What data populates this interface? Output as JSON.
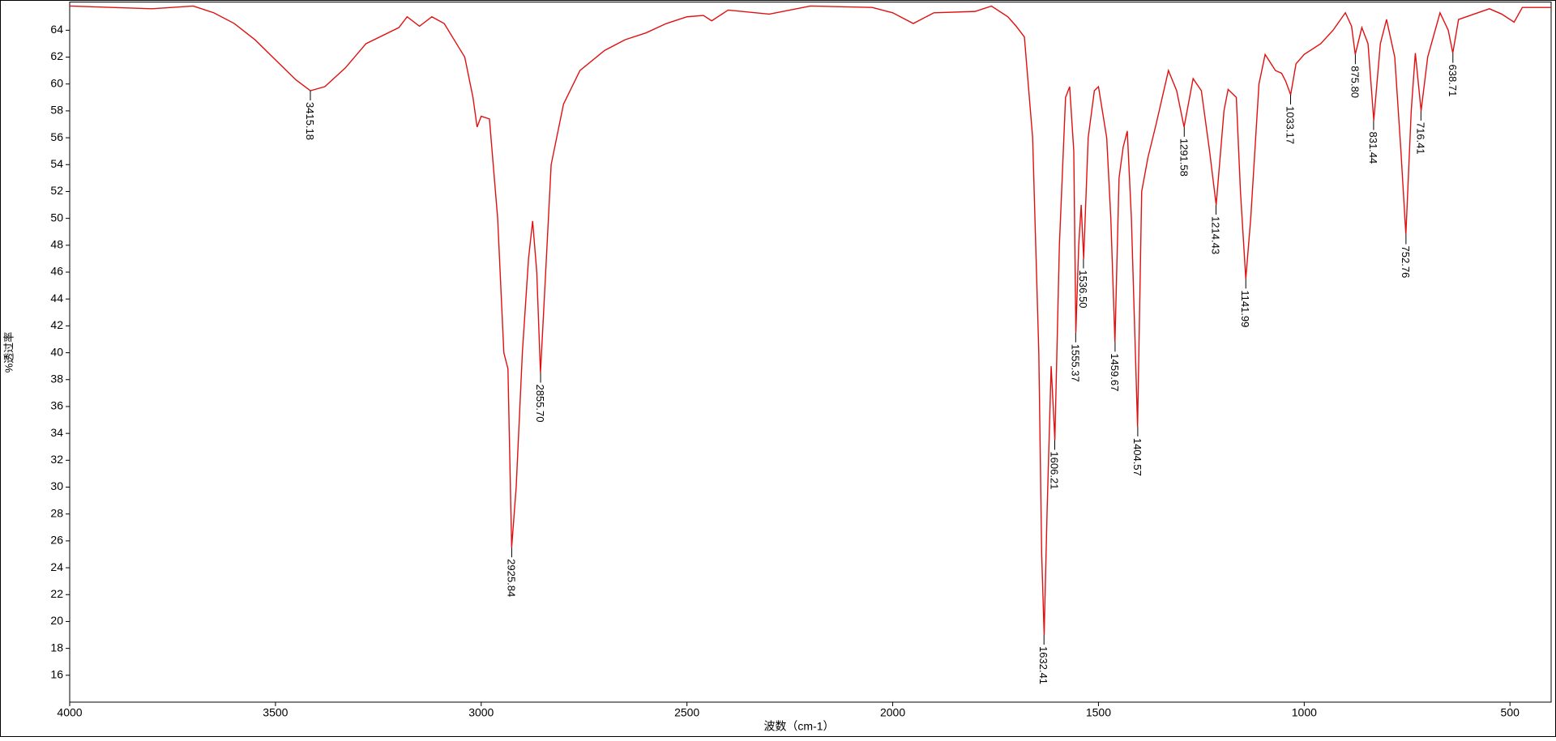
{
  "chart_data": {
    "type": "line",
    "xlabel": "波数（cm-1）",
    "ylabel": "%透过率",
    "color": "#e01010",
    "xlim": [
      4000,
      400
    ],
    "ylim": [
      14,
      66.1
    ],
    "xticks": [
      4000,
      3500,
      3000,
      2500,
      2000,
      1500,
      1000,
      500
    ],
    "yticks": [
      16,
      18,
      20,
      22,
      24,
      26,
      28,
      30,
      32,
      34,
      36,
      38,
      40,
      42,
      44,
      46,
      48,
      50,
      52,
      54,
      56,
      58,
      60,
      62,
      64
    ],
    "x": [
      4000,
      3800,
      3700,
      3650,
      3600,
      3550,
      3500,
      3450,
      3415,
      3380,
      3330,
      3280,
      3200,
      3180,
      3150,
      3120,
      3090,
      3060,
      3040,
      3020,
      3010,
      3000,
      2980,
      2960,
      2945,
      2935,
      2926,
      2915,
      2900,
      2885,
      2875,
      2865,
      2856,
      2845,
      2830,
      2800,
      2760,
      2700,
      2650,
      2600,
      2550,
      2500,
      2460,
      2440,
      2400,
      2300,
      2200,
      2050,
      2000,
      1950,
      1900,
      1800,
      1760,
      1720,
      1700,
      1680,
      1660,
      1645,
      1638,
      1632,
      1625,
      1615,
      1610,
      1606,
      1595,
      1580,
      1570,
      1560,
      1555,
      1548,
      1542,
      1536,
      1525,
      1510,
      1500,
      1480,
      1470,
      1460,
      1450,
      1440,
      1430,
      1420,
      1405,
      1395,
      1380,
      1360,
      1330,
      1310,
      1292,
      1270,
      1250,
      1230,
      1214,
      1195,
      1185,
      1165,
      1155,
      1142,
      1130,
      1110,
      1095,
      1070,
      1055,
      1045,
      1033,
      1020,
      1000,
      960,
      930,
      900,
      885,
      876,
      860,
      845,
      831,
      815,
      800,
      780,
      765,
      753,
      740,
      730,
      716,
      700,
      670,
      650,
      639,
      625,
      550,
      520,
      490,
      470,
      400
    ],
    "values": [
      65.8,
      65.6,
      65.8,
      65.3,
      64.5,
      63.3,
      61.8,
      60.3,
      59.5,
      59.8,
      61.2,
      63.0,
      64.2,
      65.0,
      64.3,
      65.0,
      64.5,
      63.0,
      62.0,
      59.0,
      56.8,
      57.6,
      57.4,
      50,
      40,
      38.8,
      25.5,
      30,
      40,
      47,
      49.8,
      46,
      38.5,
      45,
      54,
      58.5,
      61.0,
      62.5,
      63.3,
      63.8,
      64.5,
      65.0,
      65.1,
      64.7,
      65.5,
      65.2,
      65.8,
      65.7,
      65.3,
      64.5,
      65.3,
      65.4,
      65.8,
      65.0,
      64.3,
      63.5,
      56,
      40,
      25,
      19.0,
      28,
      39,
      36,
      33.5,
      48,
      59.0,
      59.8,
      55,
      41.5,
      48,
      51.0,
      47.0,
      56,
      59.5,
      59.8,
      56,
      50,
      40.8,
      53,
      55.3,
      56.5,
      50,
      34.5,
      52,
      54.5,
      57,
      61.0,
      59.5,
      56.8,
      60.4,
      59.5,
      55,
      51.0,
      58,
      59.6,
      59.0,
      52,
      45.5,
      50,
      60,
      62.2,
      61,
      60.8,
      60.2,
      59.2,
      61.5,
      62.2,
      63,
      64,
      65.3,
      64.3,
      62.2,
      64.2,
      63,
      57.3,
      63,
      64.8,
      62,
      55,
      48.8,
      58,
      62.3,
      58,
      62,
      65.3,
      64,
      62.3,
      64.8,
      65.6,
      65.2,
      64.6,
      65.7,
      65.7
    ],
    "peaks": {
      "x": [
        3415.18,
        2925.84,
        2855.7,
        1632.41,
        1606.21,
        1555.37,
        1536.5,
        1459.67,
        1404.57,
        1291.58,
        1214.43,
        1141.99,
        1033.17,
        875.8,
        831.44,
        752.76,
        716.41,
        638.71
      ],
      "values": [
        59.5,
        25.5,
        38.5,
        19.0,
        33.5,
        41.5,
        47.0,
        40.8,
        34.5,
        56.8,
        51.0,
        45.5,
        59.2,
        62.2,
        57.3,
        48.8,
        58.0,
        62.3
      ],
      "labels": [
        "3415.18",
        "2925.84",
        "2855.70",
        "1632.41",
        "1606.21",
        "1555.37",
        "1536.50",
        "1459.67",
        "1404.57",
        "1291.58",
        "1214.43",
        "1141.99",
        "1033.17",
        "875.80",
        "831.44",
        "752.76",
        "716.41",
        "638.71"
      ]
    }
  }
}
